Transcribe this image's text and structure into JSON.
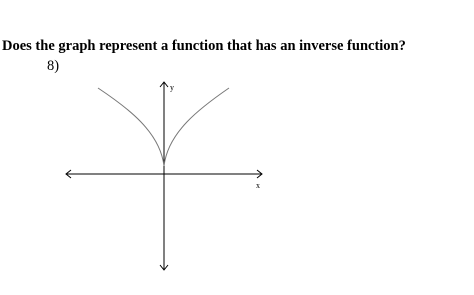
{
  "question": "Does the graph represent a function that has an inverse function?",
  "number": "8)",
  "graph": {
    "x_label": "x",
    "y_label": "y"
  }
}
